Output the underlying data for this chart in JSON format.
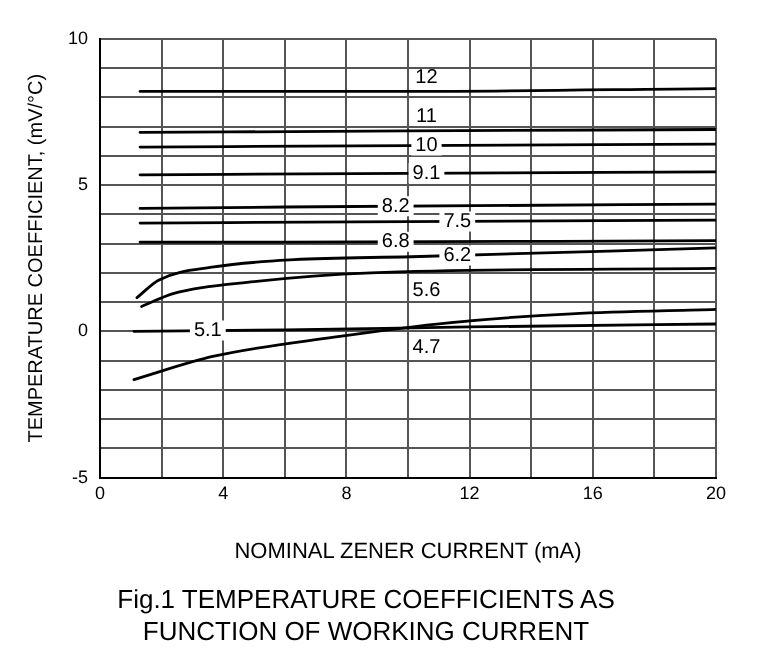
{
  "chart_data": {
    "type": "line",
    "title": "Fig.1 TEMPERATURE COEFFICIENTS AS\nFUNCTION OF WORKING CURRENT",
    "xlabel": "NOMINAL ZENER CURRENT (mA)",
    "ylabel": "TEMPERATURE COEFFICIENT, (mV/°C)",
    "xlim": [
      0,
      20
    ],
    "xticks": [
      0,
      {
        "value": 2,
        "label": null
      },
      4,
      {
        "value": 6,
        "label": null
      },
      8,
      {
        "value": 10,
        "label": null
      },
      12,
      {
        "value": 14,
        "label": null
      },
      16,
      {
        "value": 18,
        "label": null
      },
      20
    ],
    "ylim": [
      -5,
      10
    ],
    "yticks": [
      -5,
      {
        "value": -4,
        "label": null
      },
      {
        "value": -3,
        "label": null
      },
      {
        "value": -2,
        "label": null
      },
      {
        "value": -1,
        "label": null
      },
      0,
      {
        "value": 1,
        "label": null
      },
      {
        "value": 2,
        "label": null
      },
      {
        "value": 3,
        "label": null
      },
      {
        "value": 4,
        "label": null
      },
      5,
      {
        "value": 6,
        "label": null
      },
      {
        "value": 7,
        "label": null
      },
      {
        "value": 8,
        "label": null
      },
      {
        "value": 9,
        "label": null
      },
      10
    ],
    "grid": true,
    "legend": false,
    "marker": "none",
    "line_style": "solid",
    "series": [
      {
        "name": "12",
        "color": "#000000",
        "x": [
          1.3,
          10,
          20
        ],
        "values": [
          8.2,
          8.2,
          8.3
        ]
      },
      {
        "name": "11",
        "color": "#000000",
        "x": [
          1.3,
          10,
          20
        ],
        "values": [
          6.8,
          6.85,
          6.9
        ]
      },
      {
        "name": "10",
        "color": "#000000",
        "x": [
          1.3,
          10,
          20
        ],
        "values": [
          6.3,
          6.35,
          6.4
        ]
      },
      {
        "name": "9.1",
        "color": "#000000",
        "x": [
          1.3,
          10,
          20
        ],
        "values": [
          5.35,
          5.4,
          5.45
        ]
      },
      {
        "name": "8.2",
        "color": "#000000",
        "x": [
          1.3,
          6,
          20
        ],
        "values": [
          4.2,
          4.25,
          4.35
        ]
      },
      {
        "name": "7.5",
        "color": "#000000",
        "x": [
          1.3,
          10,
          20
        ],
        "values": [
          3.7,
          3.75,
          3.8
        ]
      },
      {
        "name": "6.8",
        "color": "#000000",
        "x": [
          1.3,
          6,
          20
        ],
        "values": [
          3.05,
          3.05,
          3.1
        ]
      },
      {
        "name": "6.2",
        "color": "#000000",
        "x": [
          1.2,
          1.9,
          3.7,
          6.3,
          10.1,
          20
        ],
        "values": [
          1.15,
          1.75,
          2.2,
          2.45,
          2.55,
          2.85
        ]
      },
      {
        "name": "5.6",
        "color": "#000000",
        "x": [
          1.35,
          2.4,
          5,
          8.8,
          20
        ],
        "values": [
          0.85,
          1.3,
          1.7,
          2.0,
          2.15
        ]
      },
      {
        "name": "5.1",
        "color": "#000000",
        "x": [
          1.1,
          6,
          12,
          20
        ],
        "values": [
          0,
          0.05,
          0.15,
          0.25
        ]
      },
      {
        "name": "4.7",
        "color": "#000000",
        "x": [
          1.1,
          3.7,
          7.6,
          11.4,
          15.3,
          20
        ],
        "values": [
          -1.65,
          -0.85,
          -0.2,
          0.3,
          0.6,
          0.75
        ]
      }
    ]
  }
}
